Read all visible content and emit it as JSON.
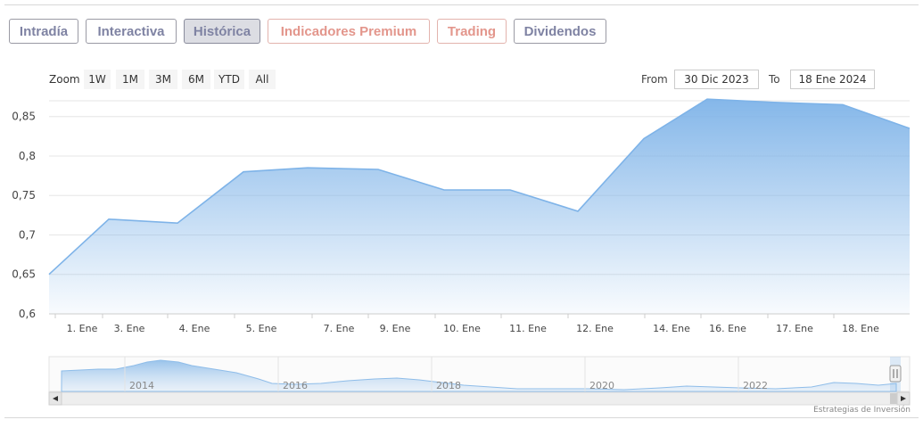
{
  "tabs": [
    {
      "label": "Intradía",
      "color": "#7f83a3"
    },
    {
      "label": "Interactiva",
      "color": "#7f83a3"
    },
    {
      "label": "Histórica",
      "color": "#7f83a3",
      "active": true
    },
    {
      "label": "Indicadores Premium",
      "color": "#e3968c"
    },
    {
      "label": "Trading",
      "color": "#e3968c"
    },
    {
      "label": "Dividendos",
      "color": "#7f83a3"
    }
  ],
  "zoom": {
    "label": "Zoom",
    "buttons": [
      "1W",
      "1M",
      "3M",
      "6M",
      "YTD",
      "All"
    ]
  },
  "range": {
    "from_label": "From",
    "from_value": "30 Dic 2023",
    "to_label": "To",
    "to_value": "18 Ene 2024"
  },
  "chart_data": {
    "type": "area",
    "title": "",
    "xlabel": "",
    "ylabel": "",
    "ylim": [
      0.6,
      0.87
    ],
    "yticks": [
      "0,6",
      "0,65",
      "0,7",
      "0,75",
      "0,8",
      "0,85"
    ],
    "xtick_labels": [
      "1. Ene",
      "3. Ene",
      "4. Ene",
      "5. Ene",
      "7. Ene",
      "9. Ene",
      "10. Ene",
      "11. Ene",
      "12. Ene",
      "14. Ene",
      "16. Ene",
      "17. Ene",
      "18. Ene"
    ],
    "x": [
      "31. Dic",
      "2. Ene",
      "3. Ene",
      "4. Ene",
      "5. Ene",
      "8. Ene",
      "9. Ene",
      "10. Ene",
      "11. Ene",
      "12. Ene",
      "15. Ene",
      "16. Ene",
      "17. Ene",
      "18. Ene"
    ],
    "series": [
      {
        "values": [
          0.65,
          0.72,
          0.715,
          0.78,
          0.785,
          0.783,
          0.757,
          0.757,
          0.73,
          0.822,
          0.872,
          0.868,
          0.865,
          0.835
        ]
      }
    ],
    "grid": true,
    "color": "#7eb3e8",
    "navigator": {
      "year_labels": [
        "2014",
        "2016",
        "2018",
        "2020",
        "2022"
      ]
    }
  },
  "credit": "Estrategias de Inversión"
}
